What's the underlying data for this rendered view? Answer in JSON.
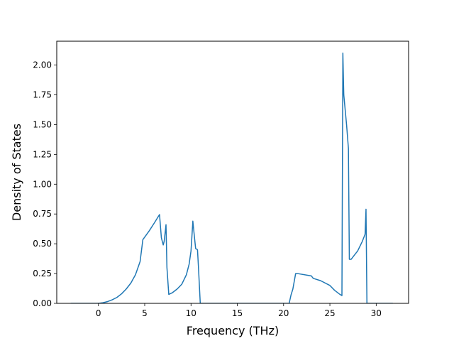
{
  "chart_data": {
    "type": "line",
    "title": "",
    "xlabel": "Frequency (THz)",
    "ylabel": "Density of States",
    "xlim": [
      -4.5,
      33.5
    ],
    "ylim": [
      0,
      2.2
    ],
    "xticks": [
      0,
      5,
      10,
      15,
      20,
      25,
      30
    ],
    "yticks": [
      0.0,
      0.25,
      0.5,
      0.75,
      1.0,
      1.25,
      1.5,
      1.75,
      2.0
    ],
    "xtick_labels": [
      "0",
      "5",
      "10",
      "15",
      "20",
      "25",
      "30"
    ],
    "ytick_labels": [
      "0.00",
      "0.25",
      "0.50",
      "0.75",
      "1.00",
      "1.25",
      "1.50",
      "1.75",
      "2.00"
    ],
    "grid": false,
    "line_color": "#1f77b4",
    "series": [
      {
        "x": [
          -3.0,
          -1.0,
          0.0,
          0.5,
          1.0,
          1.5,
          2.0,
          2.5,
          3.0,
          3.5,
          4.0,
          4.5,
          4.8,
          5.5,
          6.0,
          6.6,
          6.8,
          7.0,
          7.1,
          7.3,
          7.4,
          7.6,
          8.0,
          8.5,
          9.0,
          9.5,
          9.8,
          10.0,
          10.2,
          10.3,
          10.5,
          10.7,
          10.8,
          11.0,
          11.1,
          11.2,
          15.0,
          20.0,
          20.6,
          20.8,
          21.0,
          21.3,
          21.5,
          23.0,
          23.2,
          24.0,
          25.0,
          25.5,
          26.0,
          26.3,
          26.4,
          26.5,
          26.8,
          27.0,
          27.1,
          27.3,
          27.5,
          28.0,
          28.5,
          28.8,
          28.9,
          29.0,
          31.8
        ],
        "y": [
          0.0,
          0.0,
          0.0,
          0.005,
          0.015,
          0.03,
          0.05,
          0.08,
          0.12,
          0.17,
          0.24,
          0.35,
          0.535,
          0.61,
          0.67,
          0.745,
          0.55,
          0.49,
          0.52,
          0.66,
          0.3,
          0.075,
          0.09,
          0.12,
          0.16,
          0.24,
          0.33,
          0.44,
          0.69,
          0.61,
          0.46,
          0.45,
          0.31,
          0.0,
          0.0,
          0.0,
          0.0,
          0.0,
          0.0,
          0.07,
          0.12,
          0.25,
          0.25,
          0.23,
          0.21,
          0.19,
          0.15,
          0.11,
          0.08,
          0.065,
          2.1,
          1.75,
          1.5,
          1.3,
          0.37,
          0.37,
          0.39,
          0.44,
          0.52,
          0.58,
          0.79,
          0.0,
          0.0
        ]
      }
    ]
  }
}
